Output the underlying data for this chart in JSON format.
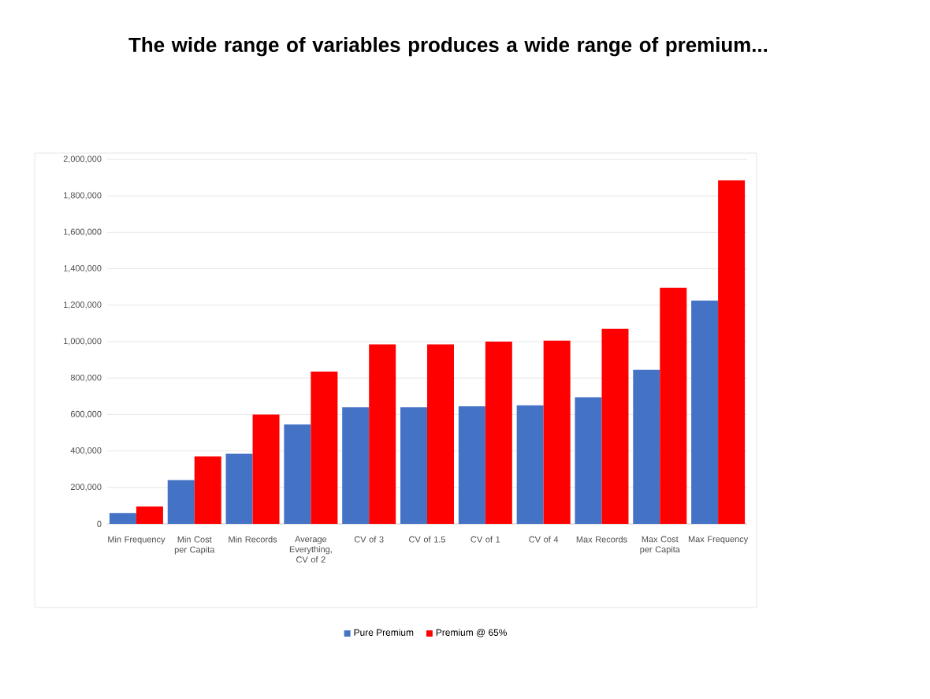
{
  "chart_data": {
    "type": "bar",
    "title": "The wide range of variables produces a wide range of premium...",
    "categories": [
      "Min Frequency",
      "Min Cost per Capita",
      "Min Records",
      "Average Everything, CV of 2",
      "CV of 3",
      "CV of 1.5",
      "CV of 1",
      "CV of 4",
      "Max Records",
      "Max Cost per Capita",
      "Max Frequency"
    ],
    "series": [
      {
        "name": "Pure Premium",
        "color": "#4472c4",
        "values": [
          60000,
          240000,
          385000,
          545000,
          640000,
          640000,
          645000,
          650000,
          695000,
          845000,
          1225000
        ]
      },
      {
        "name": "Premium @ 65%",
        "color": "#ff0000",
        "values": [
          95000,
          370000,
          600000,
          835000,
          985000,
          985000,
          1000000,
          1005000,
          1070000,
          1295000,
          1885000
        ]
      }
    ],
    "ylim": [
      0,
      2000000
    ],
    "yticks": [
      {
        "value": 0,
        "label": "0"
      },
      {
        "value": 200000,
        "label": "200,000"
      },
      {
        "value": 400000,
        "label": "400,000"
      },
      {
        "value": 600000,
        "label": "600,000"
      },
      {
        "value": 800000,
        "label": "800,000"
      },
      {
        "value": 1000000,
        "label": "1,000,000"
      },
      {
        "value": 1200000,
        "label": "1,200,000"
      },
      {
        "value": 1400000,
        "label": "1,400,000"
      },
      {
        "value": 1600000,
        "label": "1,600,000"
      },
      {
        "value": 1800000,
        "label": "1,800,000"
      },
      {
        "value": 2000000,
        "label": "2,000,000"
      }
    ],
    "grid": "y",
    "legend": "bottom"
  }
}
